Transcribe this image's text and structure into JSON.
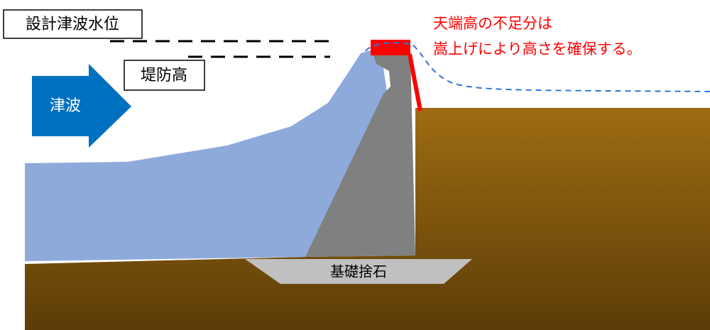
{
  "labels": {
    "design_water_level": "設計津波水位",
    "levee_height": "堤防高",
    "tsunami": "津波",
    "foundation": "基礎捨石"
  },
  "note": {
    "line1": "天端高の不足分は",
    "line2": "嵩上げにより高さを確保する。"
  }
}
